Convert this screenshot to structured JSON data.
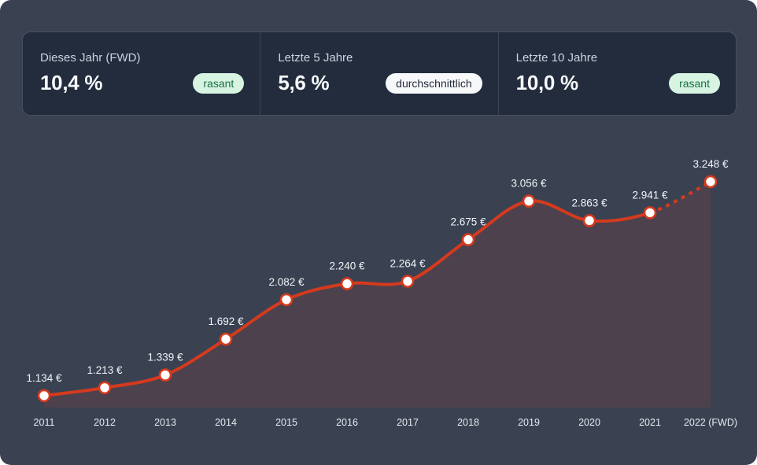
{
  "colors": {
    "page_bg": "#3A4252",
    "card_bg": "#222C3C",
    "card_border": "#45505F",
    "divider": "#3C4655",
    "text_label": "#CBD3DE",
    "text_value": "#F6F8FA",
    "badge_green_bg": "#D7F3E2",
    "badge_green_text": "#177141",
    "badge_white_bg": "#F7F8FA",
    "badge_white_text": "#232C3C",
    "chart_label": "#F2F4F7",
    "axis_label": "#E6E9EE"
  },
  "stats": {
    "cards": [
      {
        "label": "Dieses Jahr (FWD)",
        "value": "10,4 %",
        "badge": "rasant",
        "badge_class": "badge green"
      },
      {
        "label": "Letzte 5 Jahre",
        "value": "5,6 %",
        "badge": "durchschnittlich",
        "badge_class": "badge white"
      },
      {
        "label": "Letzte 10 Jahre",
        "value": "10,0 %",
        "badge": "rasant",
        "badge_class": "badge green"
      }
    ]
  },
  "chart_data": {
    "type": "line",
    "title": "",
    "xlabel": "",
    "ylabel": "",
    "categories": [
      "2011",
      "2012",
      "2013",
      "2014",
      "2015",
      "2016",
      "2017",
      "2018",
      "2019",
      "2020",
      "2021",
      "2022 (FWD)"
    ],
    "values": [
      1134,
      1213,
      1339,
      1692,
      2082,
      2240,
      2264,
      2675,
      3056,
      2863,
      2941,
      3248
    ],
    "point_labels": [
      "1.134 €",
      "1.213 €",
      "1.339 €",
      "1.692 €",
      "2.082 €",
      "2.240 €",
      "2.264 €",
      "2.675 €",
      "3.056 €",
      "2.863 €",
      "2.941 €",
      "3.248 €"
    ],
    "unit": "€",
    "forecast_last_segment": true,
    "grid": false,
    "legend": "none",
    "ylim": [
      1017,
      3500
    ],
    "line_color": "#D53A1E",
    "marker_fill": "#FFFFFF",
    "area_fill": "rgba(213,58,30,0.12)"
  }
}
